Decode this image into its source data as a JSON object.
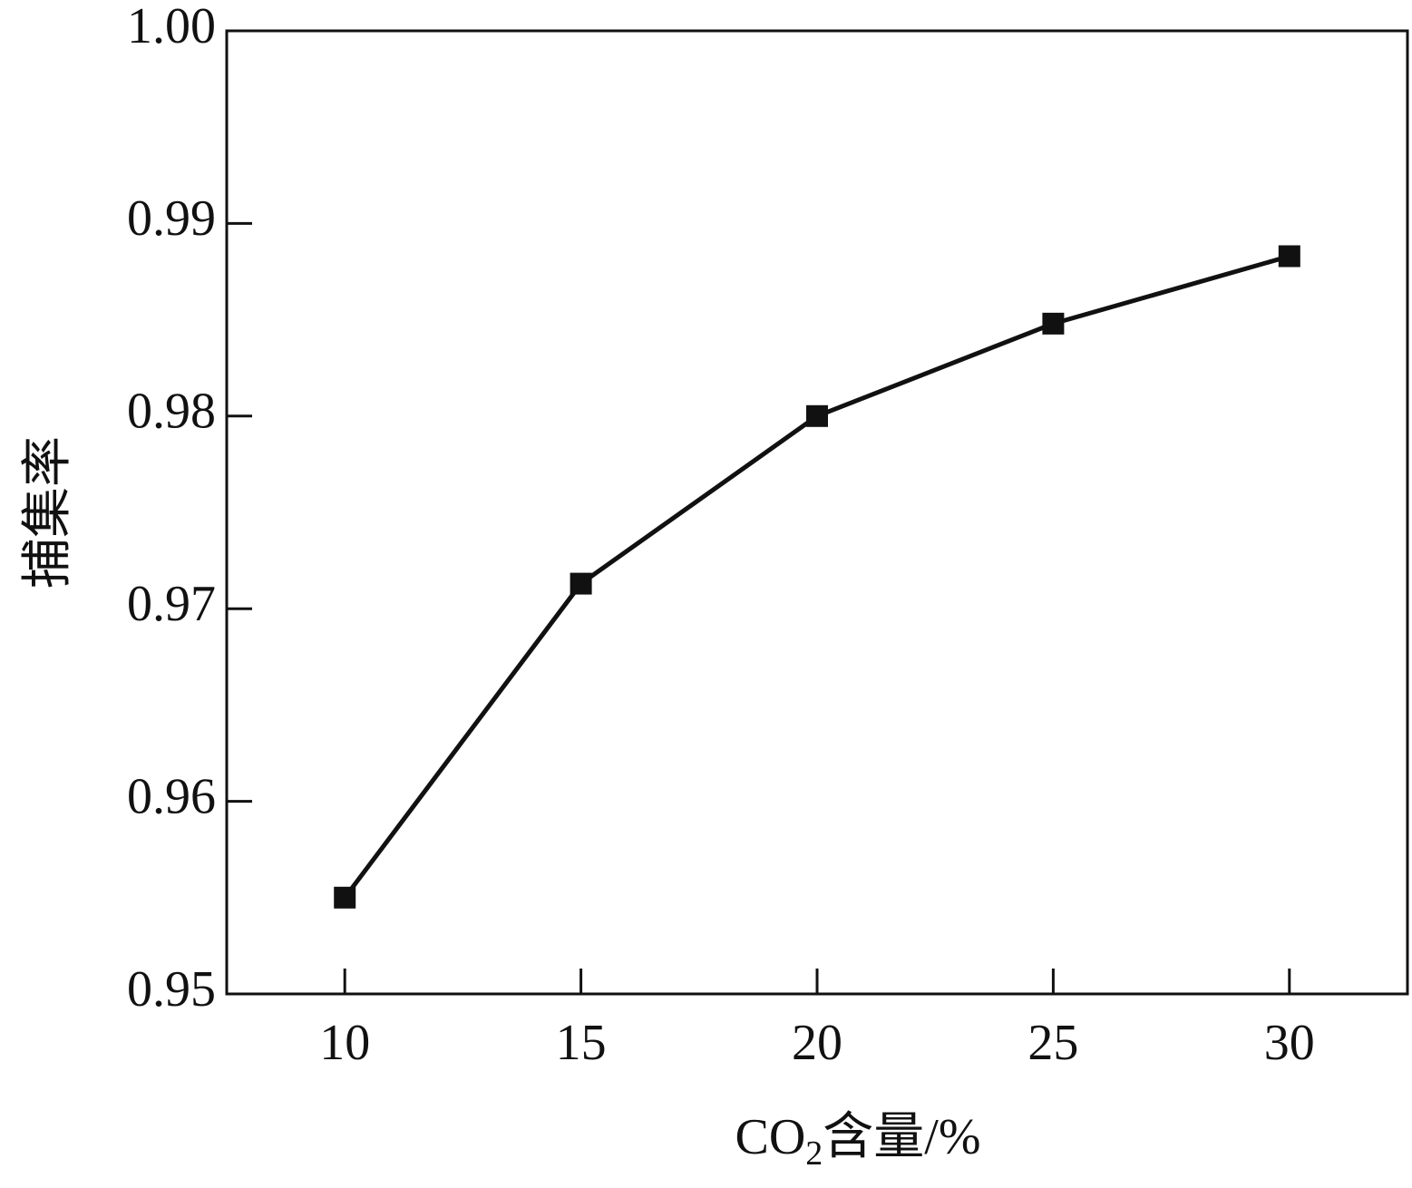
{
  "chart_data": {
    "type": "line",
    "x": [
      10,
      15,
      20,
      25,
      30
    ],
    "series": [
      {
        "values": [
          0.955,
          0.9713,
          0.98,
          0.9848,
          0.9883
        ]
      }
    ],
    "xlabel": "CO₂含量/%",
    "xlabel_parts": {
      "pre": "CO",
      "sub": "2",
      "post": "含量/%"
    },
    "ylabel": "捕集率",
    "xlim": [
      7.5,
      32.5
    ],
    "ylim": [
      0.95,
      1.0
    ],
    "x_ticks": [
      "10",
      "15",
      "20",
      "25",
      "30"
    ],
    "y_ticks": [
      "0.95",
      "0.96",
      "0.97",
      "0.98",
      "0.99",
      "1.00"
    ],
    "grid": false,
    "legend": "none",
    "marker": "square",
    "line_color": "#111111"
  }
}
